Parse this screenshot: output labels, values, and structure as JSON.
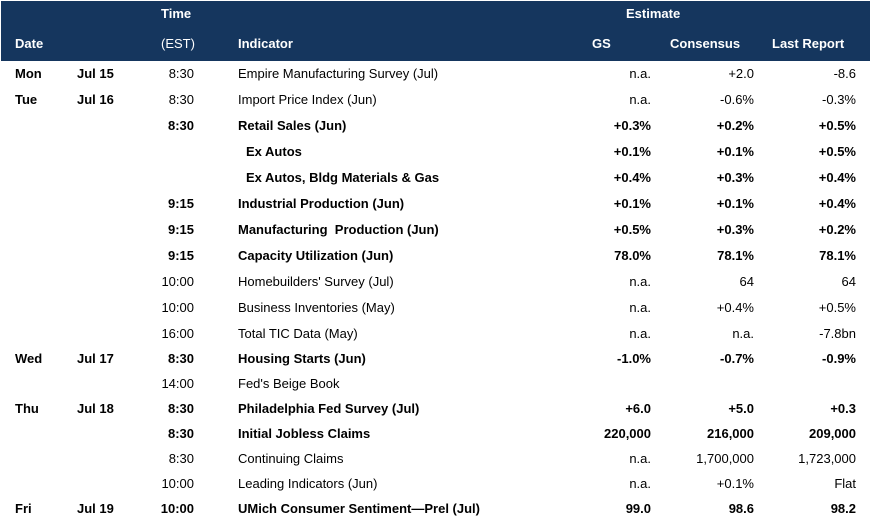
{
  "header": {
    "time_top": "Time",
    "estimate": "Estimate",
    "date": "Date",
    "time_sub": "(EST)",
    "indicator": "Indicator",
    "gs": "GS",
    "consensus": "Consensus",
    "last_report": "Last Report"
  },
  "rows": [
    {
      "day": "Mon",
      "date": "Jul 15",
      "time": "8:30",
      "indicator": "Empire Manufacturing Survey (Jul)",
      "gs": "n.a.",
      "consensus": "+2.0",
      "last": "-8.6"
    },
    {
      "day": "Tue",
      "date": "Jul 16",
      "time": "8:30",
      "indicator": "Import Price Index (Jun)",
      "gs": "n.a.",
      "consensus": "-0.6%",
      "last": "-0.3%"
    },
    {
      "day": "",
      "date": "",
      "time": "8:30",
      "indicator": "Retail Sales (Jun)",
      "gs": "+0.3%",
      "consensus": "+0.2%",
      "last": "+0.5%"
    },
    {
      "day": "",
      "date": "",
      "time": "",
      "indicator": "Ex Autos",
      "gs": "+0.1%",
      "consensus": "+0.1%",
      "last": "+0.5%"
    },
    {
      "day": "",
      "date": "",
      "time": "",
      "indicator": "Ex Autos, Bldg Materials & Gas",
      "gs": "+0.4%",
      "consensus": "+0.3%",
      "last": "+0.4%"
    },
    {
      "day": "",
      "date": "",
      "time": "9:15",
      "indicator": "Industrial Production (Jun)",
      "gs": "+0.1%",
      "consensus": "+0.1%",
      "last": "+0.4%"
    },
    {
      "day": "",
      "date": "",
      "time": "9:15",
      "indicator": "Manufacturing  Production (Jun)",
      "gs": "+0.5%",
      "consensus": "+0.3%",
      "last": "+0.2%"
    },
    {
      "day": "",
      "date": "",
      "time": "9:15",
      "indicator": "Capacity Utilization (Jun)",
      "gs": "78.0%",
      "consensus": "78.1%",
      "last": "78.1%"
    },
    {
      "day": "",
      "date": "",
      "time": "10:00",
      "indicator": "Homebuilders' Survey (Jul)",
      "gs": "n.a.",
      "consensus": "64",
      "last": "64"
    },
    {
      "day": "",
      "date": "",
      "time": "10:00",
      "indicator": "Business Inventories (May)",
      "gs": "n.a.",
      "consensus": "+0.4%",
      "last": "+0.5%"
    },
    {
      "day": "",
      "date": "",
      "time": "16:00",
      "indicator": "Total TIC Data (May)",
      "gs": "n.a.",
      "consensus": "n.a.",
      "last": "-7.8bn"
    },
    {
      "day": "Wed",
      "date": "Jul 17",
      "time": "8:30",
      "indicator": "Housing Starts (Jun)",
      "gs": "-1.0%",
      "consensus": "-0.7%",
      "last": "-0.9%"
    },
    {
      "day": "",
      "date": "",
      "time": "14:00",
      "indicator": "Fed's Beige Book",
      "gs": "",
      "consensus": "",
      "last": ""
    },
    {
      "day": "Thu",
      "date": "Jul 18",
      "time": "8:30",
      "indicator": "Philadelphia Fed Survey (Jul)",
      "gs": "+6.0",
      "consensus": "+5.0",
      "last": "+0.3"
    },
    {
      "day": "",
      "date": "",
      "time": "8:30",
      "indicator": "Initial Jobless Claims",
      "gs": "220,000",
      "consensus": "216,000",
      "last": "209,000"
    },
    {
      "day": "",
      "date": "",
      "time": "8:30",
      "indicator": "Continuing Claims",
      "gs": "n.a.",
      "consensus": "1,700,000",
      "last": "1,723,000"
    },
    {
      "day": "",
      "date": "",
      "time": "10:00",
      "indicator": "Leading Indicators (Jun)",
      "gs": "n.a.",
      "consensus": "+0.1%",
      "last": "Flat"
    },
    {
      "day": "Fri",
      "date": "Jul 19",
      "time": "10:00",
      "indicator": "UMich Consumer Sentiment—Prel (Jul)",
      "gs": "99.0",
      "consensus": "98.6",
      "last": "98.2"
    }
  ]
}
